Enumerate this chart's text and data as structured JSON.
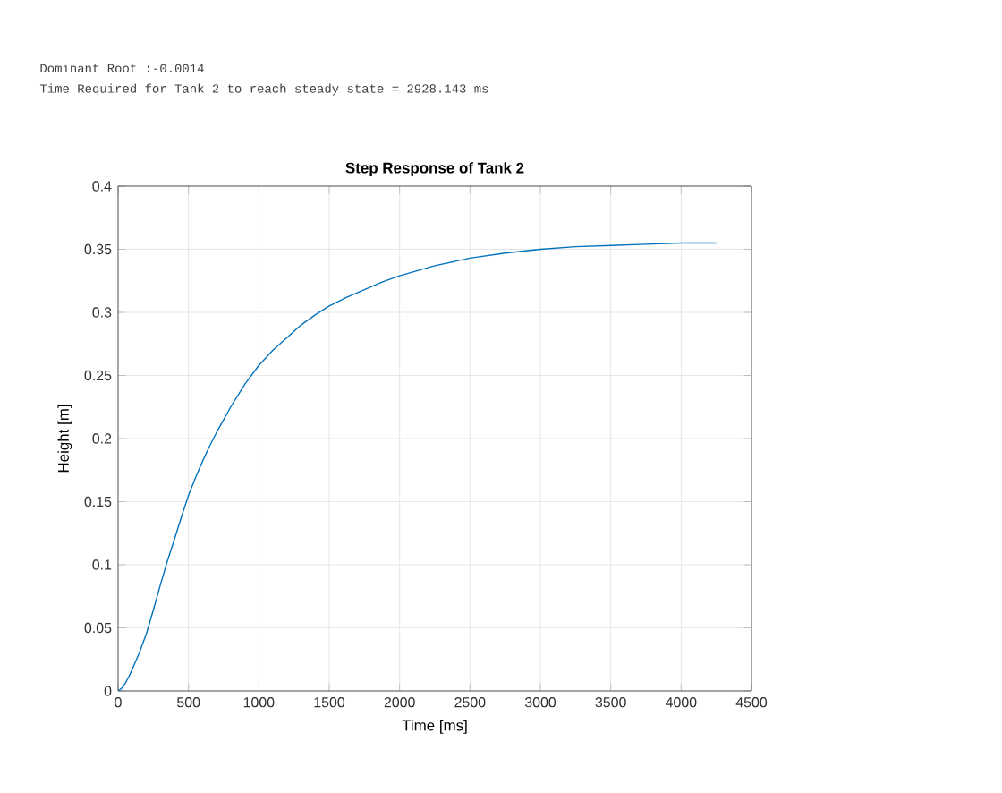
{
  "chart_data": {
    "type": "line",
    "title": "Step Response of Tank 2",
    "xlabel": "Time [ms]",
    "ylabel": "Height [m]",
    "annotations": [
      "Dominant Root :-0.0014",
      "Time Required for Tank 2 to reach steady state = 2928.143 ms"
    ],
    "x": [
      0,
      25,
      50,
      75,
      100,
      150,
      200,
      250,
      300,
      350,
      400,
      450,
      500,
      550,
      600,
      650,
      700,
      750,
      800,
      900,
      1000,
      1100,
      1200,
      1300,
      1400,
      1500,
      1625,
      1750,
      1875,
      2000,
      2250,
      2500,
      2750,
      3000,
      3250,
      3500,
      3750,
      4000,
      4250
    ],
    "series": [
      {
        "color": "#0072bd",
        "values": [
          0,
          0.002,
          0.006,
          0.011,
          0.017,
          0.03,
          0.045,
          0.064,
          0.084,
          0.103,
          0.12,
          0.138,
          0.155,
          0.169,
          0.182,
          0.194,
          0.205,
          0.215,
          0.225,
          0.243,
          0.258,
          0.27,
          0.28,
          0.29,
          0.298,
          0.305,
          0.312,
          0.318,
          0.324,
          0.329,
          0.337,
          0.343,
          0.347,
          0.35,
          0.352,
          0.353,
          0.354,
          0.355,
          0.355
        ]
      }
    ],
    "xlim": [
      0,
      4500
    ],
    "ylim": [
      0,
      0.4
    ],
    "xticks": [
      0,
      500,
      1000,
      1500,
      2000,
      2500,
      3000,
      3500,
      4000,
      4500
    ],
    "yticks": [
      0,
      0.05,
      0.1,
      0.15,
      0.2,
      0.25,
      0.3,
      0.35,
      0.4
    ],
    "grid": true
  }
}
